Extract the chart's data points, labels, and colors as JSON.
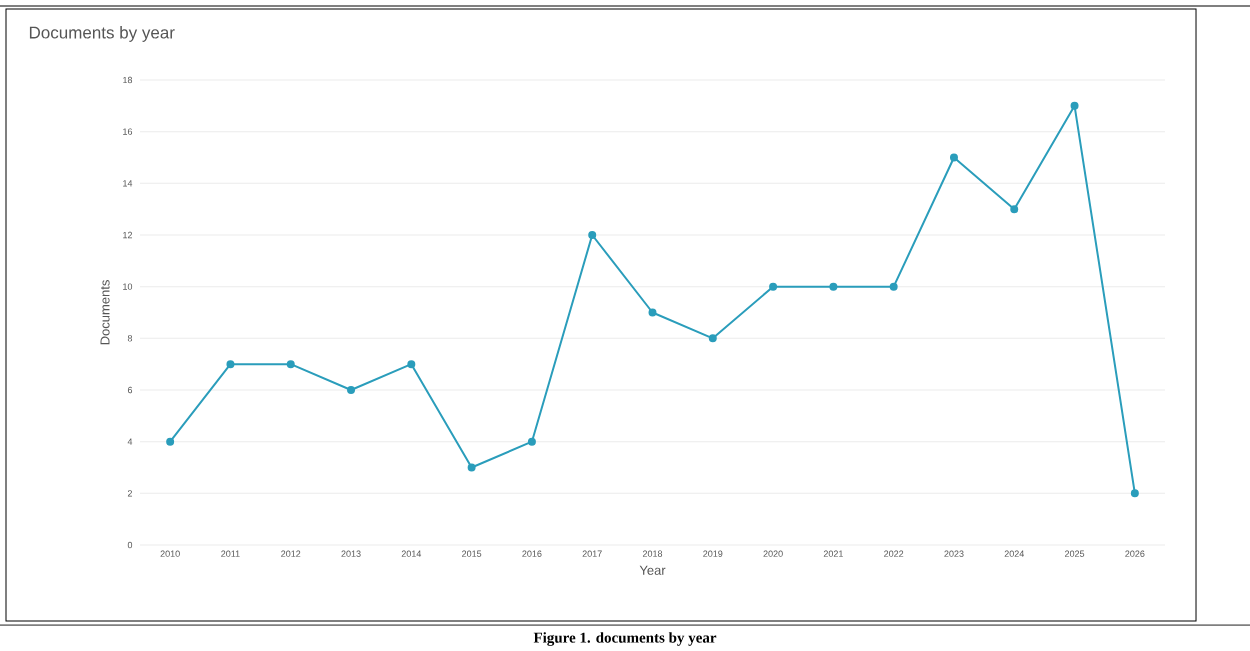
{
  "chart_data": {
    "type": "line",
    "title": "Documents by year",
    "xlabel": "Year",
    "ylabel": "Documents",
    "categories": [
      "2010",
      "2011",
      "2012",
      "2013",
      "2014",
      "2015",
      "2016",
      "2017",
      "2018",
      "2019",
      "2020",
      "2021",
      "2022",
      "2023",
      "2024",
      "2025",
      "2026"
    ],
    "series": [
      {
        "color": "#2a9dbb",
        "values": [
          4,
          7,
          7,
          6,
          7,
          3,
          4,
          12,
          9,
          8,
          10,
          10,
          10,
          15,
          13,
          17,
          2
        ]
      }
    ],
    "ylim": [
      0,
      18
    ],
    "yticks": [
      0,
      2,
      4,
      6,
      8,
      10,
      12,
      14,
      16,
      18
    ],
    "grid": "y",
    "marker": "circle",
    "line_style": "solid",
    "annotations": [
      "Figure 1. documents by year"
    ]
  }
}
